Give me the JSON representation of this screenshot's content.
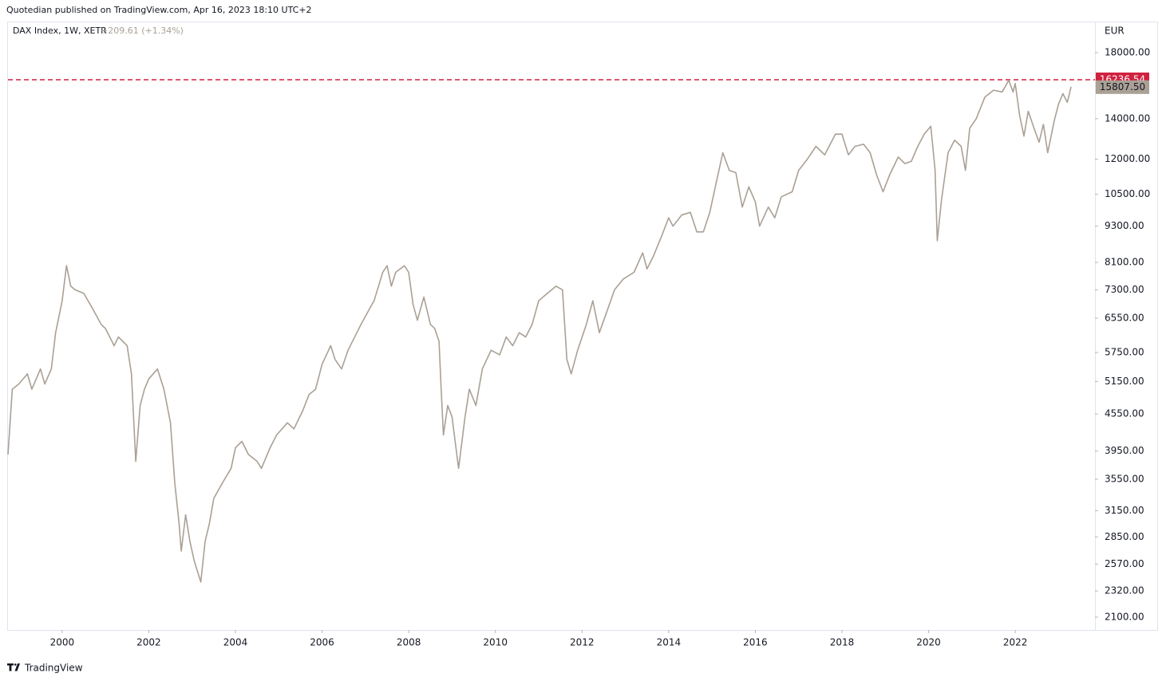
{
  "header": {
    "published": "Quotedian published on TradingView.com, Apr 16, 2023 18:10 UTC+2"
  },
  "footer": {
    "brand": "TradingView"
  },
  "chart_data": {
    "type": "line",
    "title": "DAX Index, 1W, XETR",
    "change": "+209.61 (+1.34%)",
    "y_unit": "EUR",
    "log_scale": true,
    "grid": false,
    "xlim": [
      1998.75,
      2023.84
    ],
    "xticks": [
      2000,
      2002,
      2004,
      2006,
      2008,
      2010,
      2012,
      2014,
      2016,
      2018,
      2020,
      2022
    ],
    "ylim": [
      2000,
      20200
    ],
    "yticks": [
      {
        "value": 2100,
        "label": "2100.00"
      },
      {
        "value": 2320,
        "label": "2320.00"
      },
      {
        "value": 2570,
        "label": "2570.00"
      },
      {
        "value": 2850,
        "label": "2850.00"
      },
      {
        "value": 3150,
        "label": "3150.00"
      },
      {
        "value": 3550,
        "label": "3550.00"
      },
      {
        "value": 3950,
        "label": "3950.00"
      },
      {
        "value": 4550,
        "label": "4550.00"
      },
      {
        "value": 5150,
        "label": "5150.00"
      },
      {
        "value": 5750,
        "label": "5750.00"
      },
      {
        "value": 6550,
        "label": "6550.00"
      },
      {
        "value": 7300,
        "label": "7300.00"
      },
      {
        "value": 8100,
        "label": "8100.00"
      },
      {
        "value": 9300,
        "label": "9300.00"
      },
      {
        "value": 10500,
        "label": "10500.00"
      },
      {
        "value": 12000,
        "label": "12000.00"
      },
      {
        "value": 14000,
        "label": "14000.00"
      },
      {
        "value": 18000,
        "label": "18000.00"
      }
    ],
    "reference_line": {
      "value": 16236.54,
      "label": "16236.54",
      "color": "#d0213f"
    },
    "last_price": {
      "value": 15807.5,
      "label": "15807.50",
      "color": "#aaa095"
    },
    "series": [
      {
        "name": "DAX Index",
        "color": "#aaa095",
        "x": [
          1998.75,
          1998.85,
          1999.0,
          1999.2,
          1999.3,
          1999.5,
          1999.6,
          1999.75,
          1999.85,
          2000.0,
          2000.1,
          2000.2,
          2000.3,
          2000.5,
          2000.7,
          2000.9,
          2001.0,
          2001.2,
          2001.3,
          2001.5,
          2001.6,
          2001.7,
          2001.8,
          2001.9,
          2002.0,
          2002.2,
          2002.35,
          2002.5,
          2002.6,
          2002.7,
          2002.75,
          2002.85,
          2002.95,
          2003.05,
          2003.2,
          2003.3,
          2003.4,
          2003.5,
          2003.7,
          2003.9,
          2004.0,
          2004.15,
          2004.3,
          2004.5,
          2004.6,
          2004.8,
          2004.95,
          2005.2,
          2005.35,
          2005.55,
          2005.7,
          2005.85,
          2006.0,
          2006.2,
          2006.3,
          2006.45,
          2006.6,
          2006.9,
          2007.1,
          2007.2,
          2007.4,
          2007.5,
          2007.6,
          2007.7,
          2007.9,
          2008.0,
          2008.1,
          2008.2,
          2008.35,
          2008.5,
          2008.6,
          2008.7,
          2008.75,
          2008.8,
          2008.9,
          2009.0,
          2009.15,
          2009.3,
          2009.4,
          2009.55,
          2009.7,
          2009.9,
          2010.1,
          2010.25,
          2010.4,
          2010.55,
          2010.7,
          2010.85,
          2011.0,
          2011.2,
          2011.4,
          2011.55,
          2011.65,
          2011.75,
          2011.9,
          2012.1,
          2012.25,
          2012.4,
          2012.6,
          2012.75,
          2012.95,
          2013.2,
          2013.4,
          2013.5,
          2013.65,
          2013.85,
          2014.0,
          2014.1,
          2014.3,
          2014.5,
          2014.65,
          2014.8,
          2014.95,
          2015.1,
          2015.25,
          2015.4,
          2015.55,
          2015.7,
          2015.85,
          2016.0,
          2016.1,
          2016.3,
          2016.45,
          2016.6,
          2016.85,
          2017.0,
          2017.2,
          2017.4,
          2017.6,
          2017.85,
          2018.0,
          2018.15,
          2018.3,
          2018.5,
          2018.65,
          2018.8,
          2018.95,
          2019.1,
          2019.3,
          2019.45,
          2019.6,
          2019.75,
          2019.9,
          2020.05,
          2020.15,
          2020.2,
          2020.3,
          2020.45,
          2020.6,
          2020.75,
          2020.85,
          2020.95,
          2021.1,
          2021.3,
          2021.5,
          2021.7,
          2021.85,
          2021.95,
          2022.0,
          2022.1,
          2022.2,
          2022.3,
          2022.45,
          2022.55,
          2022.65,
          2022.75,
          2022.9,
          2023.0,
          2023.1,
          2023.2,
          2023.29
        ],
        "values": [
          3900,
          5000,
          5100,
          5300,
          5000,
          5400,
          5100,
          5400,
          6200,
          7000,
          8000,
          7400,
          7300,
          7200,
          6800,
          6400,
          6300,
          5900,
          6100,
          5900,
          5300,
          3800,
          4700,
          5000,
          5200,
          5400,
          5000,
          4400,
          3500,
          3000,
          2700,
          3100,
          2800,
          2600,
          2400,
          2800,
          3000,
          3300,
          3500,
          3700,
          4000,
          4100,
          3900,
          3800,
          3700,
          4000,
          4200,
          4400,
          4300,
          4600,
          4900,
          5000,
          5500,
          5900,
          5600,
          5400,
          5800,
          6400,
          6800,
          7000,
          7800,
          8000,
          7400,
          7800,
          8000,
          7800,
          6900,
          6500,
          7100,
          6400,
          6300,
          6000,
          5000,
          4200,
          4700,
          4500,
          3700,
          4500,
          5000,
          4700,
          5400,
          5800,
          5700,
          6100,
          5900,
          6200,
          6100,
          6400,
          7000,
          7200,
          7400,
          7300,
          5600,
          5300,
          5800,
          6400,
          7000,
          6200,
          6800,
          7300,
          7600,
          7800,
          8400,
          7900,
          8300,
          9000,
          9600,
          9300,
          9700,
          9800,
          9100,
          9100,
          9800,
          11000,
          12300,
          11500,
          11400,
          10000,
          10800,
          10200,
          9300,
          10000,
          9600,
          10400,
          10600,
          11500,
          12000,
          12600,
          12200,
          13200,
          13200,
          12200,
          12600,
          12700,
          12300,
          11300,
          10600,
          11300,
          12100,
          11800,
          11900,
          12600,
          13200,
          13600,
          11500,
          8800,
          10300,
          12300,
          12900,
          12600,
          11500,
          13500,
          14000,
          15200,
          15600,
          15500,
          16200,
          15500,
          16000,
          14200,
          13100,
          14400,
          13400,
          12800,
          13700,
          12300,
          13900,
          14800,
          15400,
          14900,
          15807.5
        ]
      }
    ]
  }
}
